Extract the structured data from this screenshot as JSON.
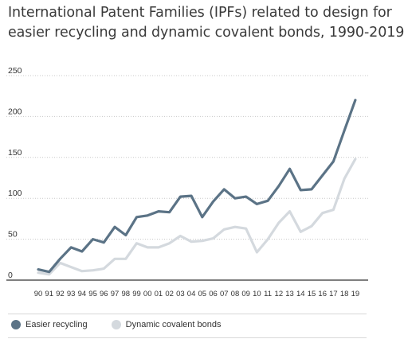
{
  "title_lines": [
    "International Patent Families (IPFs) related to design for",
    "easier recycling and dynamic covalent bonds, 1990-2019"
  ],
  "colors": {
    "easier": "#5b7386",
    "dynamic": "#d4d9de",
    "axis": "#333333",
    "grid": "#c8c8c8",
    "text": "#333333"
  },
  "chart_data": {
    "type": "line",
    "title": "International Patent Families (IPFs) related to design for easier recycling and dynamic covalent bonds, 1990-2019",
    "xlabel": "",
    "ylabel": "",
    "x": [
      "90",
      "91",
      "92",
      "93",
      "94",
      "95",
      "96",
      "97",
      "98",
      "99",
      "00",
      "01",
      "02",
      "03",
      "04",
      "05",
      "06",
      "07",
      "08",
      "09",
      "10",
      "11",
      "12",
      "13",
      "14",
      "15",
      "16",
      "17",
      "18",
      "19"
    ],
    "ylim": [
      0,
      250
    ],
    "yticks": [
      0,
      50,
      100,
      150,
      200,
      250
    ],
    "grid": "horizontal dotted",
    "legend_position": "bottom",
    "series": [
      {
        "name": "Easier recycling",
        "values": [
          13,
          10,
          26,
          40,
          35,
          50,
          46,
          65,
          55,
          77,
          79,
          84,
          83,
          102,
          103,
          77,
          96,
          111,
          100,
          102,
          93,
          97,
          115,
          136,
          110,
          111,
          128,
          145,
          183,
          220
        ]
      },
      {
        "name": "Dynamic covalent bonds",
        "values": [
          9,
          7,
          21,
          16,
          11,
          12,
          14,
          26,
          26,
          45,
          40,
          40,
          45,
          54,
          47,
          48,
          51,
          62,
          65,
          63,
          34,
          50,
          70,
          84,
          59,
          66,
          82,
          86,
          124,
          148
        ]
      }
    ]
  },
  "legend": {
    "items": [
      {
        "label": "Easier recycling"
      },
      {
        "label": "Dynamic covalent bonds"
      }
    ]
  }
}
